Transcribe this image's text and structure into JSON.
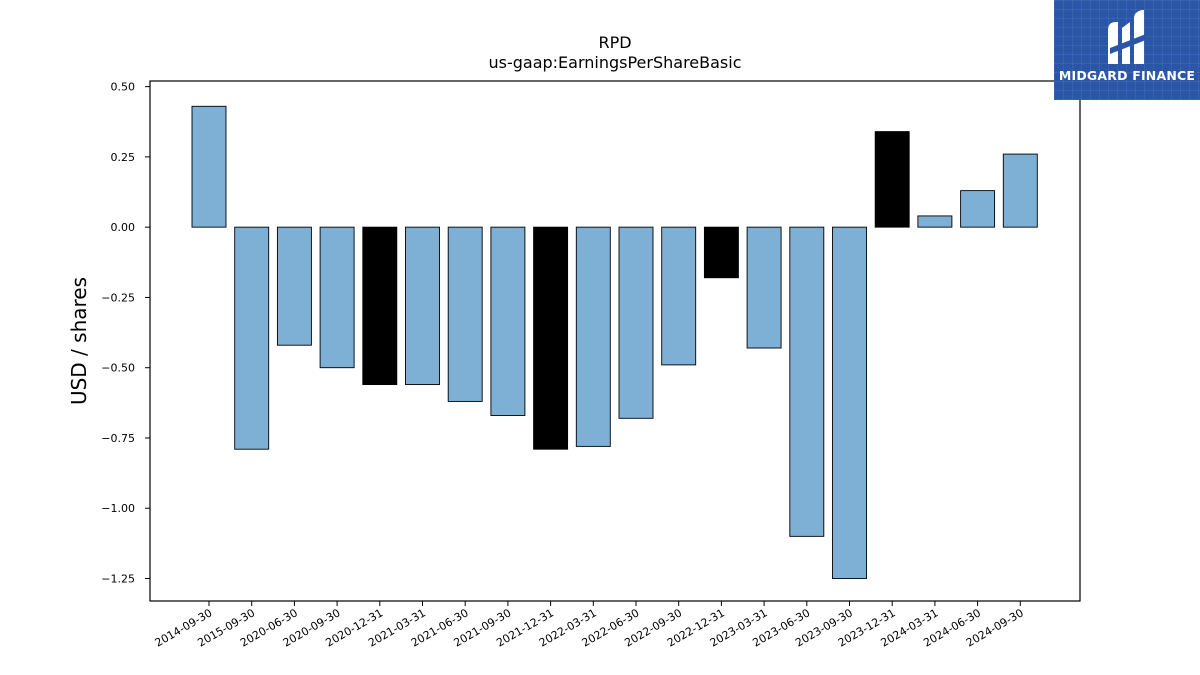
{
  "chart_data": {
    "type": "bar",
    "title": "RPD",
    "subtitle": "us-gaap:EarningsPerShareBasic",
    "xlabel": "",
    "ylabel": "USD / shares",
    "ylim": [
      -1.33,
      0.52
    ],
    "yticks": [
      0.5,
      0.25,
      0.0,
      -0.25,
      -0.5,
      -0.75,
      -1.0,
      -1.25
    ],
    "ytick_labels": [
      "0.50",
      "0.25",
      "0.00",
      "−0.25",
      "−0.50",
      "−0.75",
      "−1.00",
      "−1.25"
    ],
    "grid": false,
    "categories": [
      "2014-09-30",
      "2015-09-30",
      "2020-06-30",
      "2020-09-30",
      "2020-12-31",
      "2021-03-31",
      "2021-06-30",
      "2021-09-30",
      "2021-12-31",
      "2022-03-31",
      "2022-06-30",
      "2022-09-30",
      "2022-12-31",
      "2023-03-31",
      "2023-06-30",
      "2023-09-30",
      "2023-12-31",
      "2024-03-31",
      "2024-06-30",
      "2024-09-30"
    ],
    "values": [
      0.43,
      -0.79,
      -0.42,
      -0.5,
      -0.56,
      -0.56,
      -0.62,
      -0.67,
      -0.79,
      -0.78,
      -0.68,
      -0.49,
      -0.18,
      -0.43,
      -1.1,
      -1.25,
      0.34,
      0.04,
      0.13,
      0.26
    ],
    "bar_colors": [
      "#7eb0d5",
      "#7eb0d5",
      "#7eb0d5",
      "#7eb0d5",
      "#000000",
      "#7eb0d5",
      "#7eb0d5",
      "#7eb0d5",
      "#000000",
      "#7eb0d5",
      "#7eb0d5",
      "#7eb0d5",
      "#000000",
      "#7eb0d5",
      "#7eb0d5",
      "#7eb0d5",
      "#000000",
      "#7eb0d5",
      "#7eb0d5",
      "#7eb0d5"
    ],
    "edge_color": "#000000"
  },
  "logo": {
    "text": "MIDGARD FINANCE",
    "background": "#2b56a8"
  }
}
